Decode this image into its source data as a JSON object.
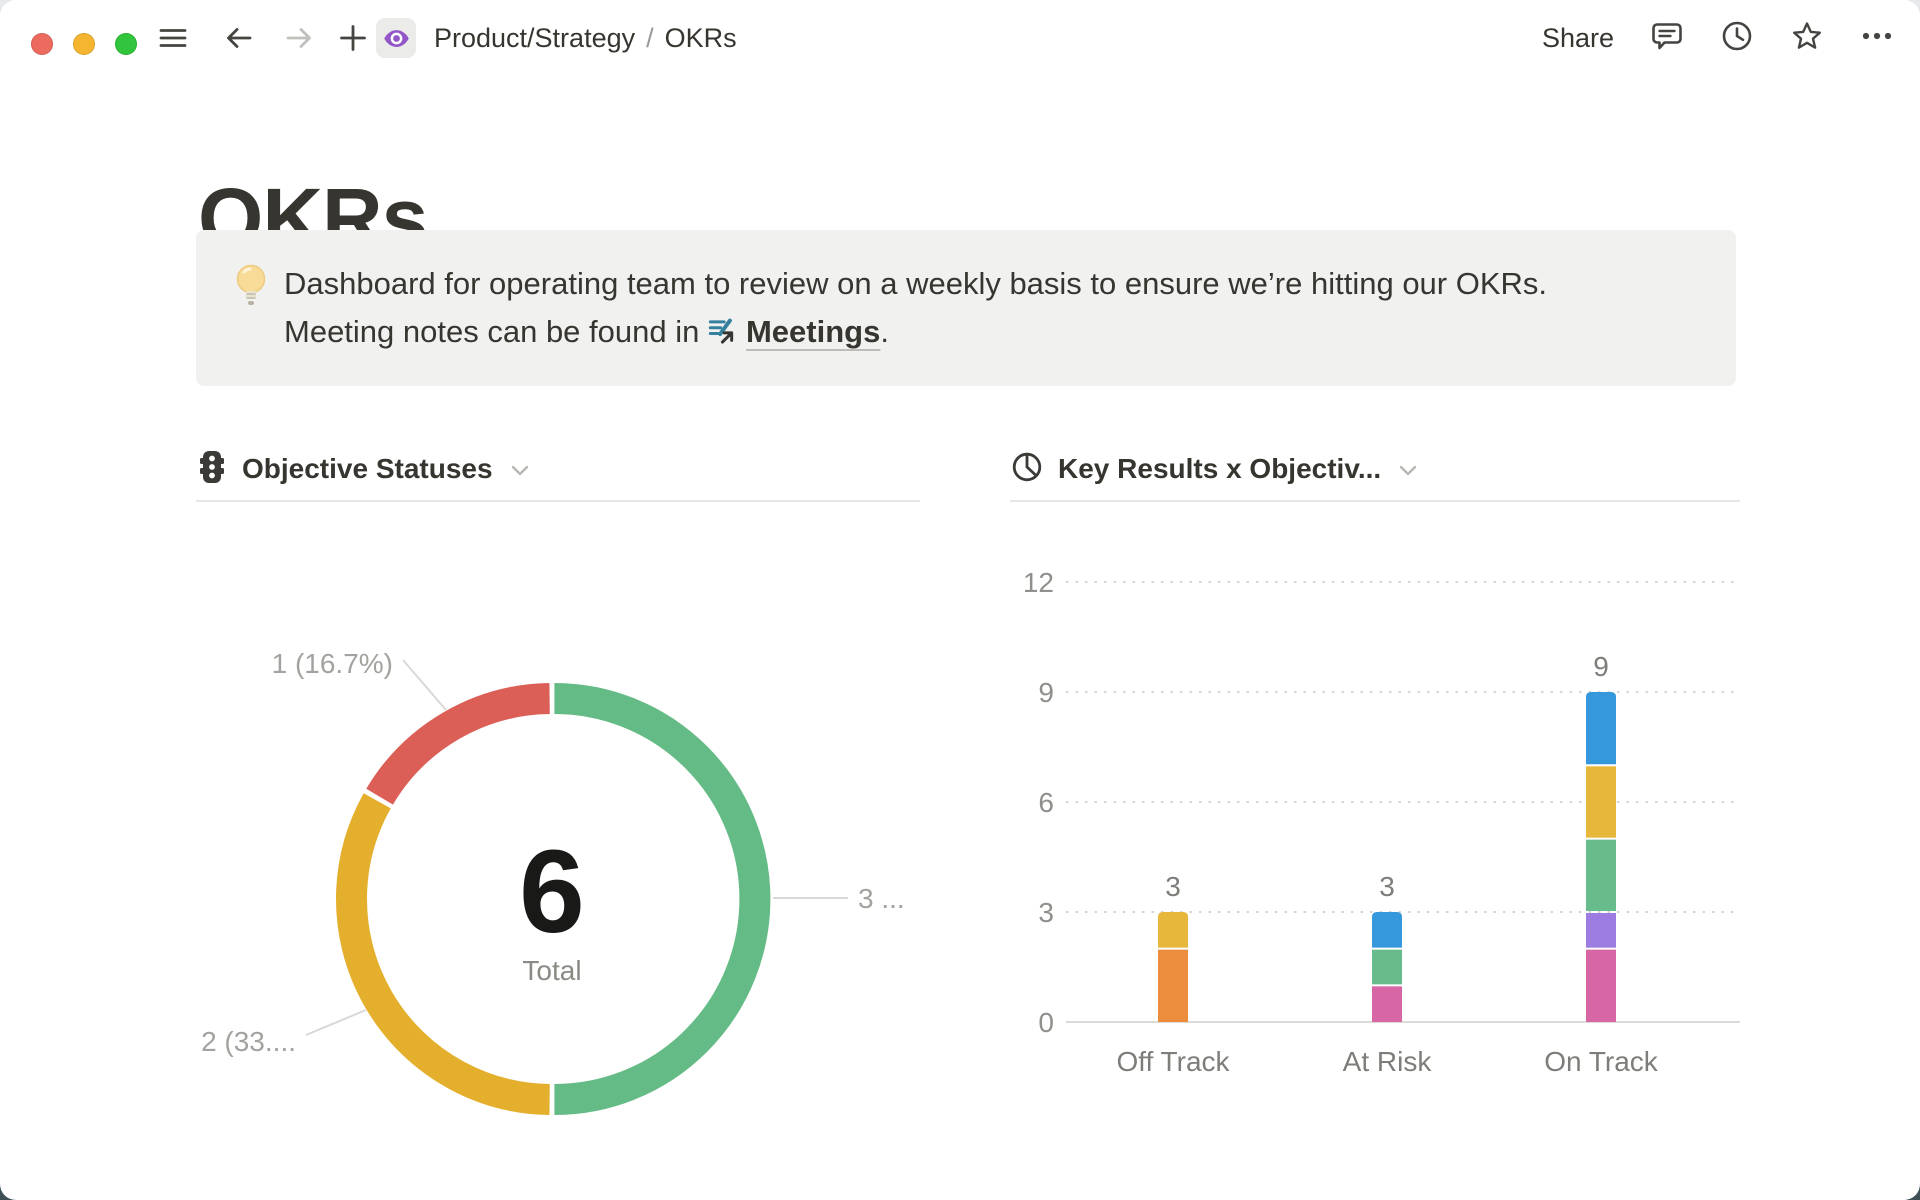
{
  "window": {
    "traffic_lights": {
      "close": "#ed6a5e",
      "minimize": "#f5b52f",
      "zoom": "#30c53c"
    },
    "toolbar_icons": [
      "hamburger-icon",
      "back-arrow-icon",
      "forward-arrow-icon",
      "plus-icon"
    ],
    "page_icon": "eye-icon",
    "breadcrumb": {
      "parent": "Product/Strategy",
      "separator": "/",
      "current": "OKRs"
    },
    "actions": {
      "share_label": "Share",
      "icons": [
        "comments-icon",
        "history-icon",
        "star-icon",
        "more-icon"
      ]
    }
  },
  "page": {
    "title": "OKRs",
    "callout": {
      "icon": "lightbulb-icon",
      "line1": "Dashboard for operating team to review on a weekly basis to ensure we’re hitting our OKRs.",
      "line2_prefix": "Meeting notes can be found in",
      "link_icon": "meetings-page-icon",
      "link_label": "Meetings",
      "line2_suffix": "."
    }
  },
  "chart_data": [
    {
      "type": "donut",
      "title": "Objective Statuses",
      "icon": "traffic-light-icon",
      "total": 6,
      "center_value": "6",
      "center_label": "Total",
      "legend_position": "outside-callouts",
      "segments": [
        {
          "value": 3,
          "percent": 50.0,
          "label": "3 ...",
          "color": "#64bb85",
          "label_position": "right"
        },
        {
          "value": 2,
          "percent": 33.3,
          "label": "2 (33....",
          "color": "#e4af2d",
          "label_position": "bottom-left"
        },
        {
          "value": 1,
          "percent": 16.7,
          "label": "1 (16.7%)",
          "color": "#db5f57",
          "label_position": "top-left"
        }
      ]
    },
    {
      "type": "bar",
      "stacked": true,
      "title": "Key Results x Objectiv...",
      "icon": "pie-chart-icon",
      "categories": [
        "Off Track",
        "At Risk",
        "On Track"
      ],
      "totals": [
        3,
        3,
        9
      ],
      "yticks": [
        0,
        3,
        6,
        9,
        12
      ],
      "ylim": [
        0,
        12
      ],
      "grid": "dotted-horizontal",
      "stacks": [
        [
          {
            "value": 2,
            "color": "#ec8c3d"
          },
          {
            "value": 1,
            "color": "#e7b73c"
          }
        ],
        [
          {
            "value": 1,
            "color": "#d667a4"
          },
          {
            "value": 1,
            "color": "#68bb8b"
          },
          {
            "value": 1,
            "color": "#3598dc"
          }
        ],
        [
          {
            "value": 2,
            "color": "#d667a4"
          },
          {
            "value": 1,
            "color": "#9d7ce2"
          },
          {
            "value": 2,
            "color": "#68bb8b"
          },
          {
            "value": 2,
            "color": "#e7b73c"
          },
          {
            "value": 2,
            "color": "#3598dc"
          }
        ]
      ]
    }
  ]
}
